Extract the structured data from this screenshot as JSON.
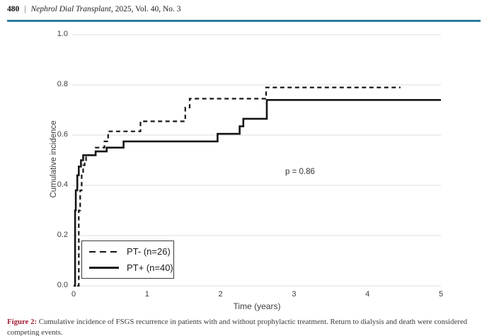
{
  "header": {
    "page_number": "480",
    "separator": "|",
    "journal_title": "Nephrol Dial Transplant",
    "issue_info": ", 2025, Vol. 40, No. 3"
  },
  "colors": {
    "rule_teal": "#2c7c9c",
    "figure_label_red": "#a31f34",
    "curve_black": "#161616",
    "gridline_gray": "#e4e4e4",
    "axis_text_gray": "#3d3d3d"
  },
  "chart_data": {
    "type": "line",
    "subtype": "step-cumulative-incidence",
    "title": "",
    "xlabel": "Time (years)",
    "ylabel": "Cumulative incidence",
    "xlim": [
      0,
      5
    ],
    "ylim": [
      0.0,
      1.0
    ],
    "xticks": [
      "0",
      "1",
      "2",
      "3",
      "4",
      "5"
    ],
    "ytick_values": [
      1.0,
      0.8,
      0.6,
      0.4,
      0.2,
      0.0
    ],
    "yticks": [
      "1.0",
      "0.8",
      "0.6",
      "0.4",
      "0.2",
      "0.0"
    ],
    "grid": "horizontal",
    "annotation": "p = 0.86",
    "legend_position": "inside-lower-left",
    "series": [
      {
        "name": "PT- (n=26)",
        "style": "dashed",
        "end_x": 4.45,
        "steps": [
          [
            0.05,
            0.0
          ],
          [
            0.07,
            0.3
          ],
          [
            0.09,
            0.38
          ],
          [
            0.11,
            0.44
          ],
          [
            0.13,
            0.48
          ],
          [
            0.15,
            0.5
          ],
          [
            0.17,
            0.52
          ],
          [
            0.3,
            0.55
          ],
          [
            0.42,
            0.575
          ],
          [
            0.47,
            0.615
          ],
          [
            0.91,
            0.655
          ],
          [
            1.52,
            0.71
          ],
          [
            1.58,
            0.745
          ],
          [
            2.62,
            0.79
          ]
        ]
      },
      {
        "name": "PT+ (n=40)",
        "style": "solid",
        "end_x": 5.0,
        "steps": [
          [
            0.0,
            0.0
          ],
          [
            0.02,
            0.3
          ],
          [
            0.03,
            0.38
          ],
          [
            0.05,
            0.44
          ],
          [
            0.07,
            0.475
          ],
          [
            0.1,
            0.5
          ],
          [
            0.13,
            0.52
          ],
          [
            0.3,
            0.535
          ],
          [
            0.45,
            0.55
          ],
          [
            0.68,
            0.575
          ],
          [
            1.96,
            0.605
          ],
          [
            2.26,
            0.635
          ],
          [
            2.31,
            0.665
          ],
          [
            2.63,
            0.74
          ]
        ]
      }
    ]
  },
  "caption": {
    "label": "Figure 2:",
    "text": " Cumulative incidence of FSGS recurrence in patients with and without prophylactic treatment. Return to dialysis and death were considered competing events."
  }
}
